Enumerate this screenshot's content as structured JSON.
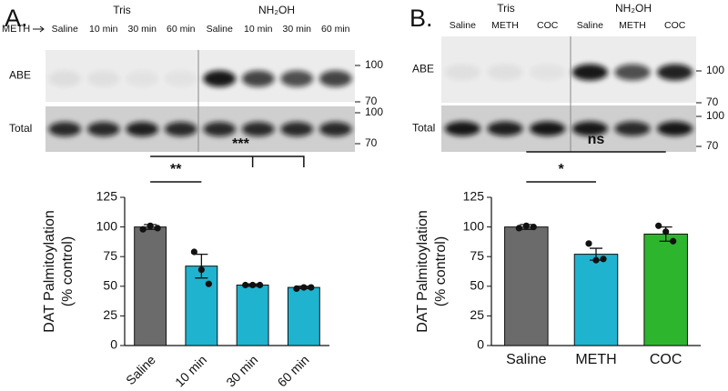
{
  "panels": [
    {
      "label": "A.",
      "blot": {
        "groups": [
          "Tris",
          "NH₂OH"
        ],
        "lane_prefix": "METH",
        "lanes": [
          "Saline",
          "10 min",
          "30 min",
          "60 min",
          "Saline",
          "10 min",
          "30 min",
          "60 min"
        ],
        "rows": [
          "ABE",
          "Total"
        ],
        "markers": [
          [
            "100",
            "70"
          ],
          [
            "100",
            "70"
          ]
        ]
      }
    },
    {
      "label": "B.",
      "blot": {
        "groups": [
          "Tris",
          "NH₂OH"
        ],
        "lanes": [
          "Saline",
          "METH",
          "COC",
          "Saline",
          "METH",
          "COC"
        ],
        "rows": [
          "ABE",
          "Total"
        ],
        "markers": [
          [
            "100",
            "70"
          ],
          [
            "100",
            "70"
          ]
        ]
      }
    }
  ],
  "chart_data": [
    {
      "type": "bar",
      "ylabel": [
        "DAT Palmitoylation",
        "(% control)"
      ],
      "categories": [
        "Saline",
        "10 min",
        "30 min",
        "60 min"
      ],
      "values": [
        100,
        67,
        51,
        49
      ],
      "errors": [
        2,
        10,
        1,
        1
      ],
      "points": [
        [
          98,
          101,
          99
        ],
        [
          79,
          64,
          52
        ],
        [
          51,
          51,
          51
        ],
        [
          48,
          49,
          49
        ]
      ],
      "colors": [
        "#6b6b6b",
        "#1fb3cf",
        "#1fb3cf",
        "#1fb3cf"
      ],
      "ylim": [
        0,
        125
      ],
      "yticks": [
        0,
        25,
        50,
        75,
        100,
        125
      ],
      "significance": [
        "**",
        "***"
      ]
    },
    {
      "type": "bar",
      "ylabel": [
        "DAT Palmitoylation",
        "(% control)"
      ],
      "categories": [
        "Saline",
        "METH",
        "COC"
      ],
      "values": [
        100,
        77,
        94
      ],
      "errors": [
        2,
        5,
        6
      ],
      "points": [
        [
          99,
          101,
          100
        ],
        [
          86,
          72,
          73
        ],
        [
          101,
          96,
          88
        ]
      ],
      "colors": [
        "#6b6b6b",
        "#1fb3cf",
        "#2db52d"
      ],
      "ylim": [
        0,
        125
      ],
      "yticks": [
        0,
        25,
        50,
        75,
        100,
        125
      ],
      "significance": [
        "*",
        "ns"
      ]
    }
  ]
}
